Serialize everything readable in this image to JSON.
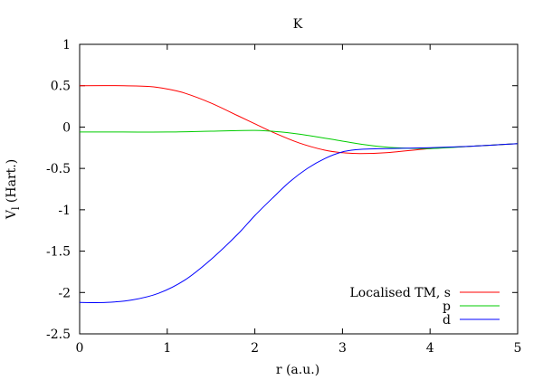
{
  "chart_data": {
    "type": "line",
    "title": "K",
    "xlabel": "r (a.u.)",
    "ylabel_main": "V",
    "ylabel_sub": "l",
    "ylabel_rest": " (Hart.)",
    "xlim": [
      0,
      5
    ],
    "ylim": [
      -2.5,
      1
    ],
    "xticks": [
      0,
      1,
      2,
      3,
      4,
      5
    ],
    "xtick_labels": [
      "0",
      "1",
      "2",
      "3",
      "4",
      "5"
    ],
    "yticks": [
      1,
      0.5,
      0,
      -0.5,
      -1,
      -1.5,
      -2,
      -2.5
    ],
    "ytick_labels": [
      "1",
      "0.5",
      "0",
      "-0.5",
      "-1",
      "-1.5",
      "-2",
      "-2.5"
    ],
    "grid": false,
    "legend_position": "bottom-right",
    "series": [
      {
        "name": "Localised TM, s",
        "color": "#ff0000",
        "x": [
          0,
          0.5,
          0.8,
          1.0,
          1.2,
          1.5,
          1.8,
          2.0,
          2.2,
          2.5,
          2.8,
          3.0,
          3.2,
          3.5,
          4.0,
          4.5,
          5.0
        ],
        "y": [
          0.5,
          0.5,
          0.49,
          0.46,
          0.41,
          0.29,
          0.14,
          0.04,
          -0.06,
          -0.19,
          -0.28,
          -0.31,
          -0.32,
          -0.31,
          -0.26,
          -0.23,
          -0.2
        ]
      },
      {
        "name": "p",
        "color": "#00cc00",
        "x": [
          0,
          0.5,
          1.0,
          1.5,
          2.0,
          2.3,
          2.6,
          3.0,
          3.3,
          3.6,
          4.0,
          4.5,
          5.0
        ],
        "y": [
          -0.06,
          -0.06,
          -0.06,
          -0.05,
          -0.04,
          -0.06,
          -0.1,
          -0.17,
          -0.22,
          -0.25,
          -0.26,
          -0.23,
          -0.2
        ]
      },
      {
        "name": "d",
        "color": "#0000ff",
        "x": [
          0,
          0.3,
          0.6,
          0.9,
          1.2,
          1.5,
          1.8,
          2.0,
          2.2,
          2.4,
          2.6,
          2.8,
          3.0,
          3.2,
          3.5,
          4.0,
          4.5,
          5.0
        ],
        "y": [
          -2.12,
          -2.12,
          -2.09,
          -2.01,
          -1.85,
          -1.6,
          -1.3,
          -1.07,
          -0.86,
          -0.66,
          -0.5,
          -0.38,
          -0.3,
          -0.27,
          -0.26,
          -0.25,
          -0.23,
          -0.2
        ]
      }
    ]
  }
}
